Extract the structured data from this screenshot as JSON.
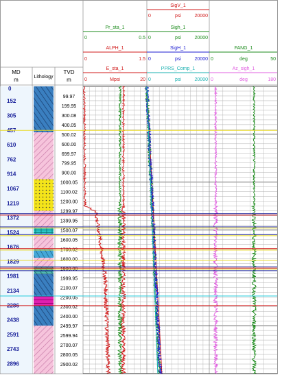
{
  "header": {
    "md": {
      "title": "MD",
      "unit": "m"
    },
    "lithology": {
      "title": "Lithology"
    },
    "tvd": {
      "title": "TVD",
      "unit": "m"
    }
  },
  "track_headers": [
    {
      "track": 1,
      "curves": [
        {
          "name": "Pr_sta_1",
          "unit": "",
          "min": "0",
          "max": "0.5",
          "color": "#1a8a1a"
        },
        {
          "name": "ALPH_1",
          "unit": "",
          "min": "0",
          "max": "1.5",
          "color": "#d01818"
        },
        {
          "name": "E_sta_1",
          "unit": "Mpsi",
          "min": "0",
          "max": "20",
          "color": "#d01818"
        }
      ]
    },
    {
      "track": 2,
      "curves": [
        {
          "name": "SigV_1",
          "unit": "psi",
          "min": "0",
          "max": "20000",
          "color": "#d01818"
        },
        {
          "name": "Sigh_1",
          "unit": "psi",
          "min": "0",
          "max": "20000",
          "color": "#1a8a1a"
        },
        {
          "name": "SigH_1",
          "unit": "psi",
          "min": "0",
          "max": "20000",
          "color": "#1818d0"
        },
        {
          "name": "PPRS_Comp_1",
          "unit": "psi",
          "min": "0",
          "max": "20000",
          "color": "#18b0b0"
        }
      ]
    },
    {
      "track": 3,
      "curves": [
        {
          "name": "FANG_1",
          "unit": "deg",
          "min": "0",
          "max": "50",
          "color": "#1a8a1a"
        },
        {
          "name": "Az_sigh_1",
          "unit": "deg",
          "min": "0",
          "max": "180",
          "color": "#e060e0"
        }
      ]
    }
  ],
  "chart_data": {
    "type": "line",
    "y_axis": "depth",
    "md_range": [
      0,
      3000
    ],
    "md_ticks": [
      152,
      305,
      457,
      610,
      762,
      914,
      1067,
      1219,
      1372,
      1524,
      1676,
      1829,
      1981,
      2134,
      2286,
      2438,
      2591,
      2743,
      2896
    ],
    "md_top_label": "0",
    "tvd_ticks": [
      "99.97",
      "199.95",
      "300.08",
      "400.05",
      "500.02",
      "600.00",
      "699.97",
      "799.95",
      "900.00",
      "1000.05",
      "1100.02",
      "1200.00",
      "1299.97",
      "1399.95",
      "1500.07",
      "1600.05",
      "1700.02",
      "1800.00",
      "1900.00",
      "1999.95",
      "2100.07",
      "2200.05",
      "2300.02",
      "2400.00",
      "2499.97",
      "2599.94",
      "2700.07",
      "2800.05",
      "2900.02"
    ],
    "tvd_values": [
      99.97,
      199.95,
      300.08,
      400.05,
      500.02,
      600.0,
      699.97,
      799.95,
      900.0,
      1000.05,
      1100.02,
      1200.0,
      1299.97,
      1399.95,
      1500.07,
      1600.05,
      1700.02,
      1800.0,
      1900.0,
      1999.95,
      2100.07,
      2200.05,
      2300.02,
      2400.0,
      2499.97,
      2599.94,
      2700.07,
      2800.05,
      2900.02
    ],
    "lithology": [
      {
        "top": 0,
        "base": 480,
        "type": "shale-sand",
        "color": "#2a6fb0"
      },
      {
        "top": 480,
        "base": 970,
        "type": "shale",
        "color": "#f0a8c8"
      },
      {
        "top": 970,
        "base": 1300,
        "type": "sandstone",
        "color": "#f2e21a"
      },
      {
        "top": 1300,
        "base": 1480,
        "type": "shale",
        "color": "#f0a8c8"
      },
      {
        "top": 1480,
        "base": 1540,
        "type": "limestone",
        "color": "#28c8c8"
      },
      {
        "top": 1540,
        "base": 1700,
        "type": "shale",
        "color": "#f0a8c8"
      },
      {
        "top": 1700,
        "base": 1790,
        "type": "marl",
        "color": "#3aa0d0"
      },
      {
        "top": 1790,
        "base": 1880,
        "type": "shale",
        "color": "#f0a8c8"
      },
      {
        "top": 1880,
        "base": 1960,
        "type": "dolomite",
        "color": "#48b0b0"
      },
      {
        "top": 1960,
        "base": 2190,
        "type": "shale-sand",
        "color": "#2a6fb0"
      },
      {
        "top": 2190,
        "base": 2290,
        "type": "anhydrite",
        "color": "#e020b0"
      },
      {
        "top": 2290,
        "base": 2500,
        "type": "shale-sand",
        "color": "#3aa0d0"
      },
      {
        "top": 2500,
        "base": 3000,
        "type": "shale",
        "color": "#f0a8c8"
      }
    ],
    "horizons": [
      {
        "md": 460,
        "color": "#e8d820"
      },
      {
        "md": 1330,
        "color": "#18209a"
      },
      {
        "md": 1345,
        "color": "#d01818"
      },
      {
        "md": 1468,
        "color": "#18209a"
      },
      {
        "md": 1480,
        "color": "#e8d820"
      },
      {
        "md": 1548,
        "color": "#18209a"
      },
      {
        "md": 1560,
        "color": "#e8d820"
      },
      {
        "md": 1695,
        "color": "#d01818"
      },
      {
        "md": 1710,
        "color": "#e8d820"
      },
      {
        "md": 1815,
        "color": "#e8d820"
      },
      {
        "md": 1885,
        "color": "#18209a"
      },
      {
        "md": 1898,
        "color": "#d01818"
      },
      {
        "md": 1910,
        "color": "#e8d820"
      },
      {
        "md": 1925,
        "color": "#18209a"
      },
      {
        "md": 2190,
        "color": "#18c8d8"
      },
      {
        "md": 2290,
        "color": "#d01818"
      }
    ],
    "series": [
      {
        "name": "SigV_1",
        "track": 2,
        "max": 20000,
        "color": "#d01818",
        "points": [
          [
            0,
            0
          ],
          [
            3000,
            4800
          ]
        ]
      },
      {
        "name": "Sigh_1",
        "track": 2,
        "max": 20000,
        "color": "#1a8a1a",
        "points": [
          [
            0,
            0
          ],
          [
            3000,
            4000
          ]
        ]
      },
      {
        "name": "SigH_1",
        "track": 2,
        "max": 20000,
        "color": "#1818d0",
        "points": [
          [
            0,
            0
          ],
          [
            3000,
            4300
          ]
        ]
      },
      {
        "name": "PPRS_Comp_1",
        "track": 2,
        "max": 20000,
        "color": "#18b0b0",
        "points": [
          [
            0,
            0
          ],
          [
            3000,
            3500
          ]
        ]
      },
      {
        "name": "E_sta_1",
        "track": 1,
        "max": 20,
        "color": "#d01818",
        "points": [
          [
            0,
            0.4
          ],
          [
            1250,
            0.6
          ],
          [
            1300,
            4
          ],
          [
            2000,
            7
          ],
          [
            3000,
            8
          ]
        ]
      },
      {
        "name": "Pr_sta_1",
        "track": 1,
        "max": 0.5,
        "color": "#1a8a1a",
        "points": [
          [
            0,
            0.29
          ],
          [
            3000,
            0.29
          ]
        ]
      },
      {
        "name": "ALPH_1",
        "track": 1,
        "max": 1.5,
        "color": "#d01818",
        "points": [
          [
            0,
            0.95
          ],
          [
            3000,
            0.95
          ]
        ]
      },
      {
        "name": "FANG_1",
        "track": 3,
        "max": 50,
        "color": "#1a8a1a",
        "points": [
          [
            0,
            33
          ],
          [
            3000,
            33
          ]
        ]
      },
      {
        "name": "Az_sigh_1",
        "track": 3,
        "max": 180,
        "color": "#e060e0",
        "points": [
          [
            0,
            17
          ],
          [
            3000,
            17
          ]
        ]
      }
    ]
  }
}
